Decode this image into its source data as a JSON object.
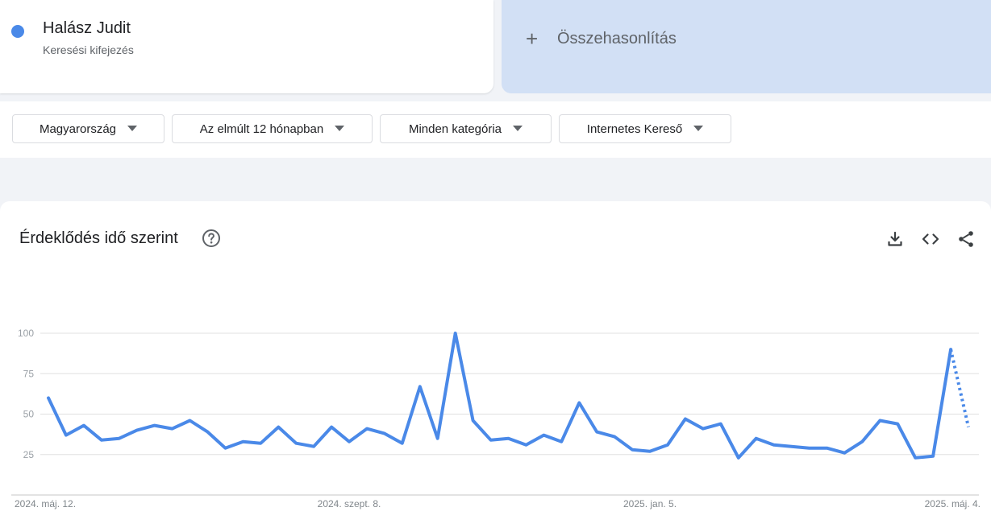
{
  "search_term": {
    "name": "Halász Judit",
    "type": "Keresési kifejezés",
    "color": "#4a89e8"
  },
  "compare": {
    "plus": "+",
    "label": "Összehasonlítás"
  },
  "filters": {
    "region": "Magyarország",
    "period": "Az elmúlt 12 hónapban",
    "category": "Minden kategória",
    "source": "Internetes Kereső"
  },
  "chart_section": {
    "title": "Érdeklődés idő szerint",
    "icons": [
      "help-icon",
      "download-icon",
      "embed-code-icon",
      "share-icon"
    ]
  },
  "chart_data": {
    "type": "line",
    "title": "",
    "xlabel": "",
    "ylabel": "",
    "ylim": [
      0,
      100
    ],
    "y_ticks": [
      25,
      50,
      75,
      100
    ],
    "x_tick_labels": [
      "2024. máj. 12.",
      "2024. szept. 8.",
      "2025. jan. 5.",
      "2025. máj. 4."
    ],
    "x_tick_indices": [
      0,
      17,
      34,
      51
    ],
    "grid": true,
    "line_color": "#4a89e8",
    "partial_from_index": 51,
    "series": [
      {
        "values": [
          60,
          37,
          43,
          34,
          35,
          40,
          43,
          41,
          46,
          39,
          29,
          33,
          32,
          42,
          32,
          30,
          42,
          33,
          41,
          38,
          32,
          67,
          35,
          100,
          46,
          34,
          35,
          31,
          37,
          33,
          57,
          39,
          36,
          28,
          27,
          31,
          47,
          41,
          44,
          23,
          35,
          31,
          30,
          29,
          29,
          26,
          33,
          46,
          44,
          23,
          24,
          90,
          42
        ]
      }
    ]
  }
}
